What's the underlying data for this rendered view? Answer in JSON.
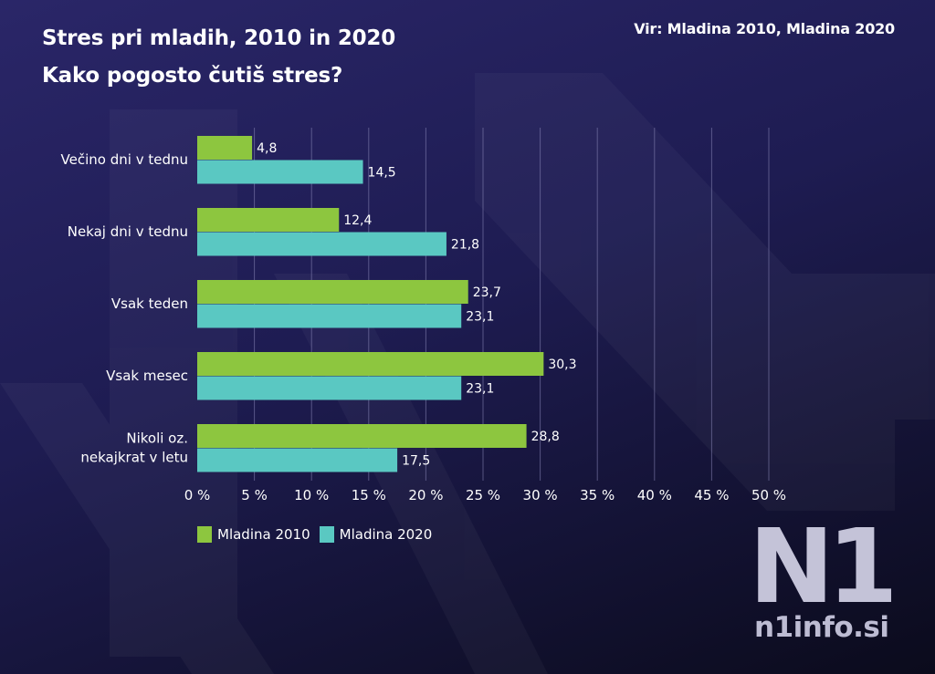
{
  "title_line1": "Stres pri mladih, 2010 in 2020",
  "title_line2": "Kako pogosto čutiš  stres?",
  "source": "Vir: Mladina 2010, Mladina 2020",
  "brand": {
    "mark": "N1",
    "site": "n1info.si"
  },
  "colors": {
    "mladina2010": "#8dc63f",
    "mladina2020": "#5ac8c2",
    "grid": "#8a88b8",
    "text": "#ffffff"
  },
  "chart_data": {
    "type": "bar",
    "orientation": "horizontal",
    "title": "Stres pri mladih, 2010 in 2020",
    "subtitle": "Kako pogosto čutiš  stres?",
    "categories": [
      "Večino dni v tednu",
      "Nekaj dni v tednu",
      "Vsak teden",
      "Vsak mesec",
      "Nikoli oz.\nnekajkrat v letu"
    ],
    "series": [
      {
        "name": "Mladina 2010",
        "values": [
          4.8,
          12.4,
          23.7,
          30.3,
          28.8
        ],
        "labels": [
          "4,8",
          "12,4",
          "23,7",
          "30,3",
          "28,8"
        ]
      },
      {
        "name": "Mladina 2020",
        "values": [
          14.5,
          21.8,
          23.1,
          23.1,
          17.5
        ],
        "labels": [
          "14,5",
          "21,8",
          "23,1",
          "23,1",
          "17,5"
        ]
      }
    ],
    "xlim": [
      0,
      50
    ],
    "xticks": [
      0,
      5,
      10,
      15,
      20,
      25,
      30,
      35,
      40,
      45,
      50
    ],
    "xtick_labels": [
      "0 %",
      "5 %",
      "10 %",
      "15 %",
      "20 %",
      "25 %",
      "30 %",
      "35 %",
      "40 %",
      "45 %",
      "50 %"
    ],
    "grid": true,
    "legend_position": "bottom-left"
  }
}
